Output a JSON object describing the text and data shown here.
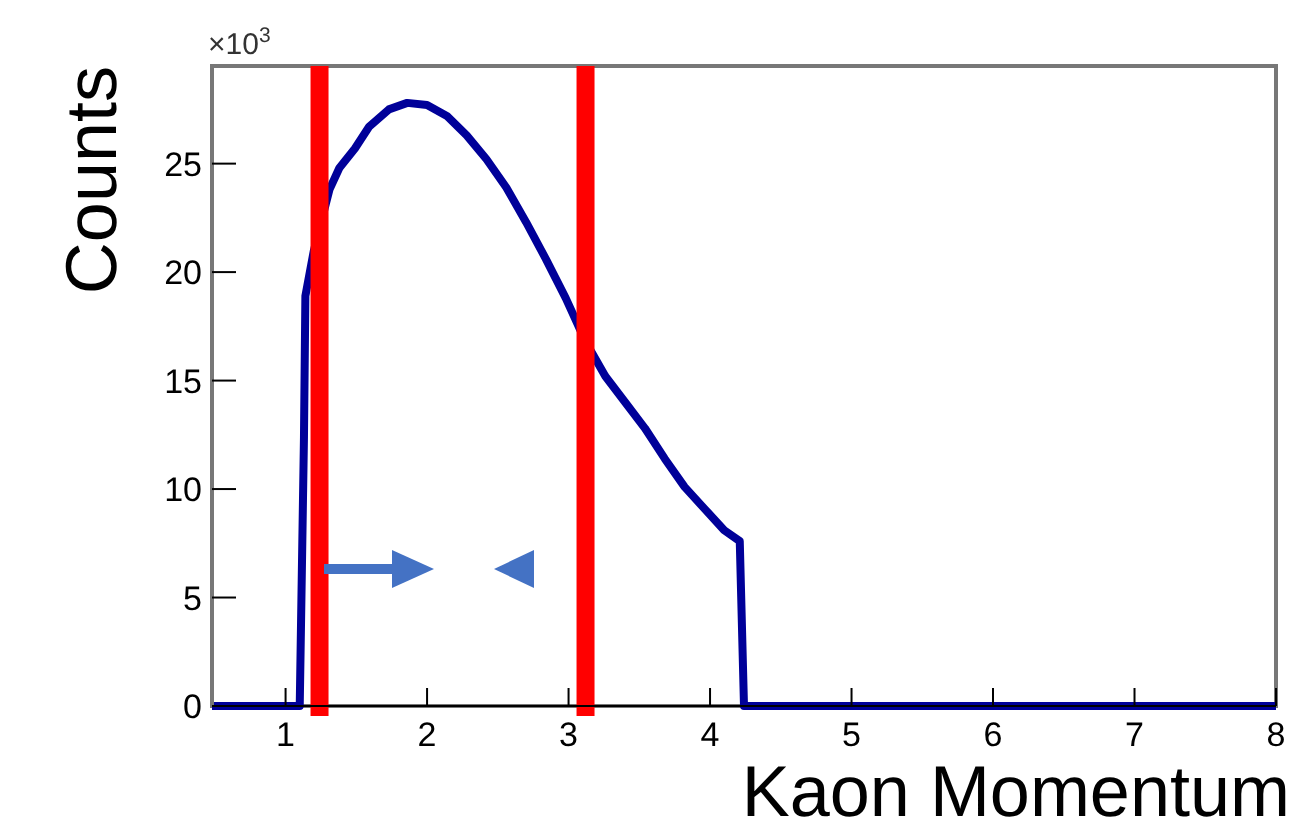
{
  "chart_data": {
    "type": "line",
    "xlabel": "Kaon Momentum",
    "ylabel": "Counts",
    "annotations": [
      "×10$^{3}$"
    ],
    "x": [
      0.48,
      1.1,
      1.13,
      1.14,
      1.2,
      1.24,
      1.31,
      1.38,
      1.49,
      1.59,
      1.73,
      1.86,
      2.0,
      2.14,
      2.28,
      2.42,
      2.56,
      2.7,
      2.84,
      2.98,
      3.12,
      3.26,
      3.4,
      3.54,
      3.68,
      3.82,
      3.96,
      4.1,
      4.21,
      4.24,
      8.0
    ],
    "series": [
      {
        "color": "#000099",
        "values": [
          0,
          0,
          12.4,
          18.9,
          21,
          null,
          23.8,
          24.8,
          25.7,
          26.7,
          27.5,
          27.8,
          27.7,
          27.2,
          26.3,
          25.2,
          23.9,
          22.3,
          20.6,
          18.8,
          16.8,
          15.2,
          14.0,
          12.8,
          11.4,
          10.1,
          9.1,
          8.1,
          7.6,
          0,
          0
        ]
      }
    ],
    "xlim": [
      0.48,
      8
    ],
    "ylim": [
      0,
      29.5
    ],
    "xticks": [
      1,
      2,
      3,
      4,
      5,
      6,
      7,
      8
    ],
    "yticks": [
      0,
      5,
      10,
      15,
      20,
      25
    ],
    "ref_lines": [
      {
        "axis": "x",
        "value": 1.24,
        "color": "#ff0000"
      },
      {
        "axis": "x",
        "value": 3.12,
        "color": "#ff0000"
      }
    ],
    "grid": false
  }
}
